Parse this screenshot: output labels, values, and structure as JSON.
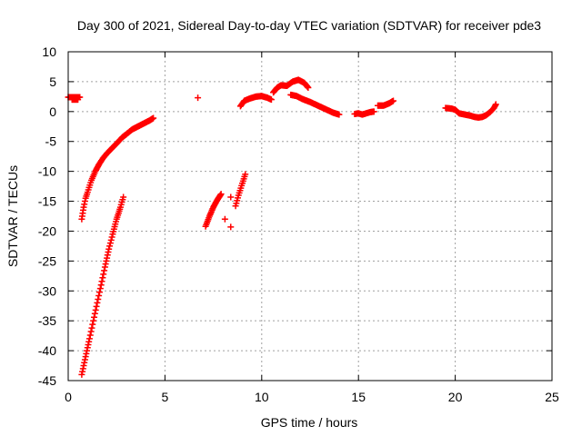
{
  "chart_data": {
    "type": "scatter",
    "title": "Day 300 of 2021, Sidereal Day-to-day VTEC variation (SDTVAR) for receiver pde3",
    "xlabel": "GPS time / hours",
    "ylabel": "SDTVAR / TECUs",
    "xlim": [
      0,
      25
    ],
    "ylim": [
      -45,
      10
    ],
    "xticks": [
      0,
      5,
      10,
      15,
      20,
      25
    ],
    "yticks": [
      10,
      5,
      0,
      -5,
      -10,
      -15,
      -20,
      -25,
      -30,
      -35,
      -40,
      -45
    ],
    "grid": true,
    "marker": "plus",
    "color": "#ff0000",
    "series": [
      {
        "segments": [
          {
            "x": [
              0.0,
              0.2,
              0.4,
              0.6
            ],
            "y": [
              2.4,
              2.4,
              2.4,
              2.4
            ]
          },
          {
            "x": [
              0.2,
              0.5
            ],
            "y": [
              2.0,
              2.0
            ]
          },
          {
            "x": [
              0.7,
              0.75,
              0.8,
              0.9,
              1.0,
              1.2,
              1.4,
              1.6,
              1.8,
              2.0,
              2.3,
              2.6,
              2.8,
              3.0,
              3.3,
              3.6,
              3.9,
              4.2,
              4.4
            ],
            "y": [
              -18.0,
              -17.0,
              -16.0,
              -14.5,
              -13.5,
              -11.5,
              -10.0,
              -8.8,
              -7.8,
              -7.0,
              -6.0,
              -5.0,
              -4.3,
              -3.8,
              -3.0,
              -2.5,
              -2.0,
              -1.5,
              -1.1
            ]
          },
          {
            "x": [
              0.7,
              0.9,
              1.1,
              1.3,
              1.5,
              1.7,
              1.9,
              2.1,
              2.3,
              2.5,
              2.7,
              2.85
            ],
            "y": [
              -44.0,
              -41.0,
              -38.0,
              -35.0,
              -32.0,
              -29.0,
              -26.0,
              -23.0,
              -20.5,
              -18.0,
              -16.0,
              -14.3
            ]
          },
          {
            "x": [
              6.7
            ],
            "y": [
              2.3
            ]
          },
          {
            "x": [
              7.1,
              7.3,
              7.5,
              7.7,
              7.9
            ],
            "y": [
              -19.2,
              -17.5,
              -16.0,
              -14.8,
              -13.8
            ]
          },
          {
            "x": [
              8.1
            ],
            "y": [
              -18.0
            ]
          },
          {
            "x": [
              8.4
            ],
            "y": [
              -19.3
            ]
          },
          {
            "x": [
              8.4
            ],
            "y": [
              -14.3
            ]
          },
          {
            "x": [
              8.65,
              8.8,
              9.0,
              9.15
            ],
            "y": [
              -15.8,
              -14.0,
              -12.0,
              -10.5
            ]
          },
          {
            "x": [
              8.9,
              9.1,
              9.4,
              9.7,
              10.0,
              10.3,
              10.5
            ],
            "y": [
              0.9,
              1.8,
              2.2,
              2.5,
              2.6,
              2.3,
              2.0
            ]
          },
          {
            "x": [
              10.6,
              10.8,
              11.0,
              11.3,
              11.6,
              11.9,
              12.2,
              12.4
            ],
            "y": [
              3.2,
              4.0,
              4.4,
              4.3,
              5.0,
              5.3,
              4.8,
              4.0
            ]
          },
          {
            "x": [
              11.5,
              11.8,
              12.1,
              12.5,
              12.9,
              13.3,
              13.7,
              14.0
            ],
            "y": [
              2.8,
              2.6,
              2.1,
              1.6,
              1.0,
              0.4,
              -0.2,
              -0.5
            ]
          },
          {
            "x": [
              14.8,
              15.0,
              15.2,
              15.4,
              15.6,
              15.8
            ],
            "y": [
              -0.4,
              -0.3,
              -0.5,
              -0.3,
              -0.1,
              0.0
            ]
          },
          {
            "x": [
              16.0,
              16.3,
              16.6,
              16.8
            ],
            "y": [
              1.0,
              1.0,
              1.4,
              1.8
            ]
          },
          {
            "x": [
              19.5,
              19.8,
              20.0,
              20.2,
              20.5,
              20.8,
              21.0,
              21.2,
              21.4,
              21.6,
              21.8,
              22.0,
              22.1
            ],
            "y": [
              0.6,
              0.5,
              0.3,
              -0.3,
              -0.5,
              -0.7,
              -0.9,
              -1.0,
              -0.9,
              -0.6,
              -0.1,
              0.6,
              1.2
            ]
          }
        ]
      }
    ]
  }
}
